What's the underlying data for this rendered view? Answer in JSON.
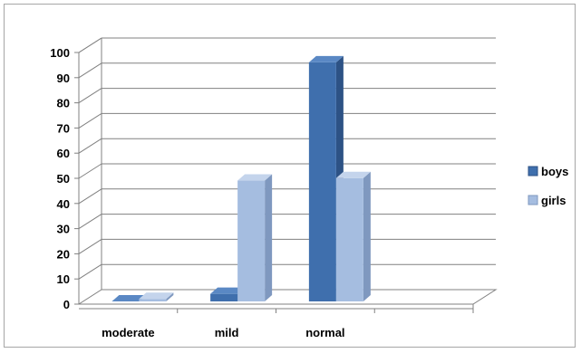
{
  "chart_data": {
    "type": "bar",
    "categories": [
      "moderate",
      "mild",
      "normal"
    ],
    "series": [
      {
        "name": "boys",
        "values": [
          0,
          3,
          95
        ]
      },
      {
        "name": "girls",
        "values": [
          1,
          48,
          49
        ]
      }
    ],
    "ylim": [
      0,
      100
    ],
    "yticks": [
      0,
      10,
      20,
      30,
      40,
      50,
      60,
      70,
      80,
      90,
      100
    ],
    "grid": true,
    "legend_position": "right",
    "colors": {
      "boys_front": "#3f6fad",
      "boys_side": "#2d5285",
      "boys_top": "#5a88c4",
      "girls_front": "#a5bde0",
      "girls_side": "#7f98bf",
      "girls_top": "#c4d4ec"
    }
  }
}
